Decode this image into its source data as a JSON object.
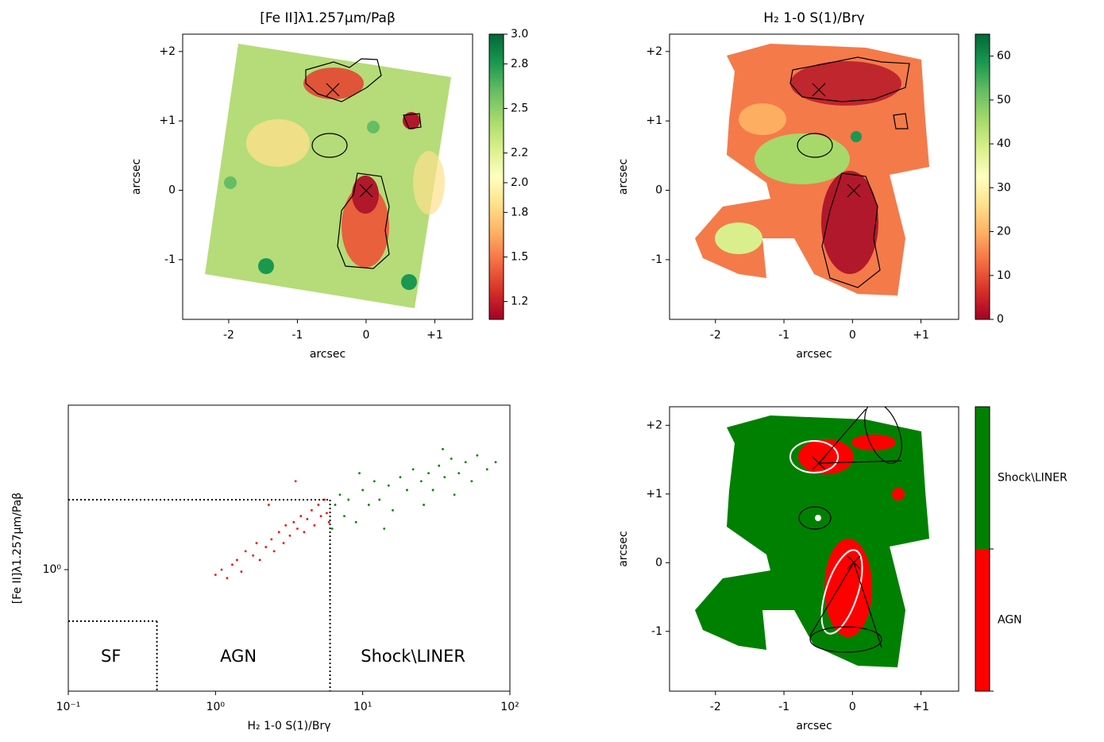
{
  "chart_data": [
    {
      "type": "heatmap",
      "title": "[Fe II]λ1.257μm/Paβ",
      "xlabel": "arcsec",
      "ylabel": "arcsec",
      "xlim": [
        -2.67,
        1.55
      ],
      "ylim": [
        -1.86,
        2.25
      ],
      "xticks": [
        -2,
        -1,
        0,
        {
          "value": 1,
          "label": "+1"
        }
      ],
      "yticks": [
        -1,
        0,
        {
          "value": 1,
          "label": "+1"
        },
        {
          "value": 2,
          "label": "+2"
        }
      ],
      "clim": [
        1.08,
        3.0
      ],
      "cticks": [
        1.2,
        1.5,
        1.8,
        {
          "value": 2.0,
          "label": "2.0"
        },
        2.2,
        2.5,
        2.8,
        {
          "value": 3.0,
          "label": "3.0"
        }
      ]
    },
    {
      "type": "heatmap",
      "title": "H₂ 1-0 S(1)/Brγ",
      "xlabel": "arcsec",
      "ylabel": "arcsec",
      "xlim": [
        -2.67,
        1.55
      ],
      "ylim": [
        -1.86,
        2.25
      ],
      "xticks": [
        -2,
        -1,
        0,
        {
          "value": 1,
          "label": "+1"
        }
      ],
      "yticks": [
        -1,
        0,
        {
          "value": 1,
          "label": "+1"
        },
        {
          "value": 2,
          "label": "+2"
        }
      ],
      "clim": [
        0,
        65
      ],
      "cticks": [
        0,
        10,
        20,
        30,
        40,
        50,
        60
      ]
    },
    {
      "type": "scatter",
      "xlabel": "H₂ 1-0 S(1)/Brγ",
      "ylabel": "[Fe II]λ1.257μm/Paβ",
      "xscale": "log",
      "yscale": "log",
      "xlim": [
        0.1,
        100
      ],
      "ylim": [
        0.3,
        5.1
      ],
      "xticks": [
        {
          "value": 0.1,
          "label": "10⁻¹"
        },
        {
          "value": 1,
          "label": "10⁰"
        },
        {
          "value": 10,
          "label": "10¹"
        },
        {
          "value": 100,
          "label": "10²"
        }
      ],
      "yticks": [
        {
          "value": 1,
          "label": "10⁰"
        }
      ],
      "series": [
        {
          "color": "#ff0000",
          "x": [
            1.0,
            1.1,
            1.2,
            1.3,
            1.4,
            1.5,
            1.6,
            1.8,
            1.9,
            2.0,
            2.2,
            2.4,
            2.5,
            2.7,
            2.9,
            3.0,
            3.2,
            3.4,
            3.6,
            3.8,
            4.0,
            4.2,
            4.5,
            4.7,
            5.0,
            5.2,
            5.5,
            5.7,
            5.9,
            2.3,
            3.5
          ],
          "y": [
            0.95,
            1.0,
            0.92,
            1.05,
            1.1,
            0.98,
            1.2,
            1.15,
            1.3,
            1.1,
            1.25,
            1.35,
            1.2,
            1.45,
            1.3,
            1.55,
            1.4,
            1.6,
            1.5,
            1.7,
            1.45,
            1.65,
            1.8,
            1.55,
            1.9,
            1.7,
            2.0,
            1.75,
            1.6,
            1.9,
            2.4
          ]
        },
        {
          "color": "#008000",
          "x": [
            6.2,
            6.5,
            7,
            7.5,
            8,
            9,
            10,
            11,
            12,
            13,
            15,
            16,
            18,
            20,
            22,
            25,
            28,
            30,
            33,
            36,
            40,
            45,
            50,
            55,
            60,
            70,
            80,
            35,
            14,
            9.5,
            26,
            42
          ],
          "y": [
            1.5,
            1.9,
            2.1,
            1.7,
            2.0,
            1.6,
            2.2,
            1.9,
            2.4,
            2.0,
            2.3,
            1.8,
            2.5,
            2.2,
            2.7,
            2.4,
            2.6,
            2.2,
            2.8,
            2.5,
            3.0,
            2.6,
            2.9,
            2.4,
            3.1,
            2.7,
            2.9,
            3.3,
            1.5,
            2.6,
            1.9,
            2.1
          ]
        }
      ],
      "dividers": [
        {
          "x": [
            0.1,
            6
          ],
          "y": [
            2,
            2
          ]
        },
        {
          "x": [
            6,
            6
          ],
          "y": [
            2,
            0.3
          ]
        },
        {
          "x": [
            0.1,
            0.4
          ],
          "y": [
            0.6,
            0.6
          ]
        },
        {
          "x": [
            0.4,
            0.4
          ],
          "y": [
            0.6,
            0.3
          ]
        }
      ],
      "annotations": [
        {
          "text": "SF",
          "x": 0.195,
          "y": 0.42
        },
        {
          "text": "AGN",
          "x": 1.43,
          "y": 0.42
        },
        {
          "text": "Shock\\LINER",
          "x": 22,
          "y": 0.42
        }
      ]
    },
    {
      "type": "map",
      "xlabel": "arcsec",
      "ylabel": "arcsec",
      "xlim": [
        -2.67,
        1.55
      ],
      "ylim": [
        -1.87,
        2.27
      ],
      "xticks": [
        -2,
        -1,
        0,
        {
          "value": 1,
          "label": "+1"
        }
      ],
      "yticks": [
        -1,
        0,
        {
          "value": 1,
          "label": "+1"
        },
        {
          "value": 2,
          "label": "+2"
        }
      ],
      "categories": [
        "AGN",
        "Shock\\LINER"
      ],
      "colors": [
        "#ff0000",
        "#008000"
      ]
    }
  ]
}
